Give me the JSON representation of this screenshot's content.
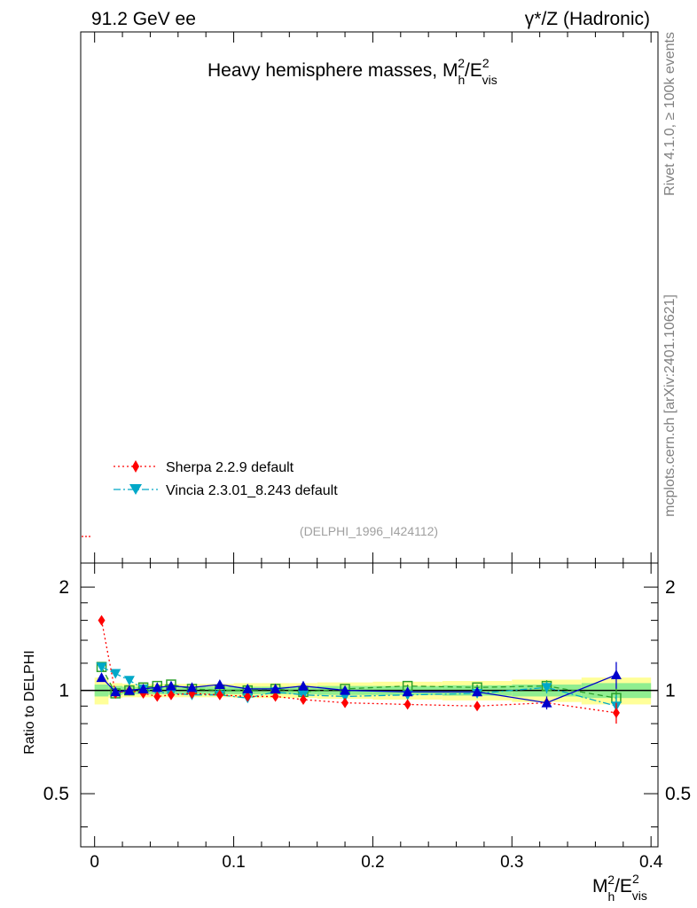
{
  "header": {
    "left": "91.2 GeV ee",
    "right": "γ*/Z (Hadronic)"
  },
  "side_labels": {
    "rivet": "Rivet 4.1.0, ≥ 100k events",
    "site": "mcplots.cern.ch [arXiv:2401.10621]"
  },
  "chart_data": {
    "type": "line",
    "title": "Heavy hemisphere masses, M²h/E²vis",
    "title_main": "Heavy hemisphere masses, M",
    "title_sup": "2",
    "title_sub": "h",
    "title_after": "/E",
    "title_sup2": "2",
    "title_sub2": "vis",
    "analysis_tag": "(DELPHI_1996_I424112)",
    "xlabel": "M²h/E²vis",
    "xlabel_parts": {
      "m": "M",
      "sup1": "2",
      "sub1": "h",
      "e": "/E",
      "sup2": "2",
      "sub2": "vis"
    },
    "ylabel_ratio": "Ratio to DELPHI",
    "xlim": [
      -0.01,
      0.405
    ],
    "ratio_ylim": [
      0.35,
      2.35
    ],
    "ratio_log": true,
    "x_ticks": [
      0,
      0.1,
      0.2,
      0.3,
      0.4
    ],
    "x_tick_labels": [
      "0",
      "0.1",
      "0.2",
      "0.3",
      "0.4"
    ],
    "ratio_ticks": [
      0.5,
      1,
      2
    ],
    "ratio_tick_labels": [
      "0.5",
      "1",
      "2"
    ],
    "x": [
      0.005,
      0.015,
      0.025,
      0.035,
      0.045,
      0.055,
      0.07,
      0.09,
      0.11,
      0.13,
      0.15,
      0.18,
      0.225,
      0.275,
      0.325,
      0.375
    ],
    "x_edges": [
      0,
      0.01,
      0.02,
      0.03,
      0.04,
      0.05,
      0.06,
      0.08,
      0.1,
      0.12,
      0.14,
      0.16,
      0.2,
      0.25,
      0.3,
      0.35,
      0.4
    ],
    "bands": {
      "inner": [
        0.04,
        0.03,
        0.025,
        0.025,
        0.025,
        0.025,
        0.025,
        0.025,
        0.025,
        0.025,
        0.025,
        0.03,
        0.03,
        0.035,
        0.04,
        0.05
      ],
      "outer": [
        0.09,
        0.05,
        0.045,
        0.045,
        0.045,
        0.045,
        0.045,
        0.045,
        0.05,
        0.05,
        0.05,
        0.055,
        0.06,
        0.065,
        0.075,
        0.09
      ],
      "inner_color": "#90ee90",
      "outer_color": "#ffff99"
    },
    "series": [
      {
        "name": "Sherpa 2.2.9 default",
        "color": "#ff0000",
        "marker": "diamond",
        "line": "dotted",
        "values": [
          1.6,
          0.98,
          1.0,
          0.98,
          0.96,
          0.97,
          0.98,
          0.97,
          0.96,
          0.96,
          0.94,
          0.92,
          0.91,
          0.9,
          0.92,
          0.86
        ],
        "errors": [
          0.02,
          0.01,
          0.01,
          0.01,
          0.01,
          0.01,
          0.01,
          0.01,
          0.01,
          0.01,
          0.01,
          0.01,
          0.01,
          0.02,
          0.03,
          0.06
        ]
      },
      {
        "name": "Vincia 2.3.01_8.243 default",
        "color": "#00a8c8",
        "marker": "triangle-down",
        "line": "dashdot",
        "values": [
          1.17,
          1.12,
          1.07,
          1.01,
          0.99,
          0.98,
          0.97,
          0.97,
          0.95,
          0.99,
          0.97,
          0.96,
          0.97,
          0.98,
          1.02,
          0.9
        ],
        "errors": [
          0.02,
          0.01,
          0.01,
          0.01,
          0.01,
          0.01,
          0.01,
          0.01,
          0.01,
          0.01,
          0.01,
          0.01,
          0.01,
          0.02,
          0.04,
          0.07
        ]
      },
      {
        "name": "",
        "color": "#0000cc",
        "marker": "triangle-up",
        "line": "solid",
        "values": [
          1.09,
          0.99,
          1.0,
          1.01,
          1.02,
          1.03,
          1.02,
          1.04,
          1.01,
          1.01,
          1.03,
          1.0,
          0.99,
          0.99,
          0.92,
          1.11
        ],
        "errors": [
          0.02,
          0.01,
          0.01,
          0.01,
          0.01,
          0.01,
          0.01,
          0.01,
          0.01,
          0.01,
          0.01,
          0.01,
          0.01,
          0.02,
          0.04,
          0.1
        ]
      },
      {
        "name": "",
        "color": "#2ca02c",
        "marker": "square-open",
        "line": "dashed",
        "values": [
          1.17,
          0.98,
          1.0,
          1.02,
          1.03,
          1.04,
          1.01,
          1.0,
          1.0,
          1.01,
          0.99,
          1.01,
          1.03,
          1.02,
          1.03,
          0.95
        ],
        "errors": [
          0.02,
          0.01,
          0.01,
          0.01,
          0.01,
          0.01,
          0.01,
          0.01,
          0.01,
          0.01,
          0.01,
          0.01,
          0.01,
          0.02,
          0.04,
          0.06
        ]
      }
    ]
  }
}
